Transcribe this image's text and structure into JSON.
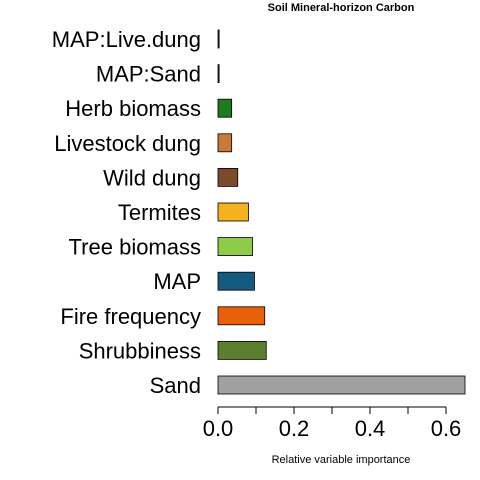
{
  "chart_data": {
    "type": "bar",
    "orientation": "horizontal",
    "title": "Soil Mineral-horizon Carbon",
    "xlabel": "Relative variable importance",
    "ylabel": "",
    "xlim": [
      0,
      0.65
    ],
    "xticks": [
      "0.0",
      "0.2",
      "0.4",
      "0.6"
    ],
    "xtick_values": [
      0,
      0.2,
      0.4,
      0.6
    ],
    "minor_xticks": [
      0.1,
      0.3,
      0.5
    ],
    "grid": false,
    "categories": [
      "MAP:Live.dung",
      "MAP:Sand",
      "Herb biomass",
      "Livestock dung",
      "Wild dung",
      "Termites",
      "Tree biomass",
      "MAP",
      "Fire frequency",
      "Shrubbiness",
      "Sand"
    ],
    "values": [
      0.003,
      0.003,
      0.036,
      0.036,
      0.052,
      0.08,
      0.091,
      0.096,
      0.123,
      0.127,
      0.65
    ],
    "colors": [
      "#1a3a6b",
      "#1a3a6b",
      "#1e7b1e",
      "#c87a3a",
      "#7a4a2a",
      "#f5b120",
      "#8ecb4a",
      "#155a80",
      "#e8600a",
      "#5b7f2e",
      "#a0a0a0"
    ]
  }
}
